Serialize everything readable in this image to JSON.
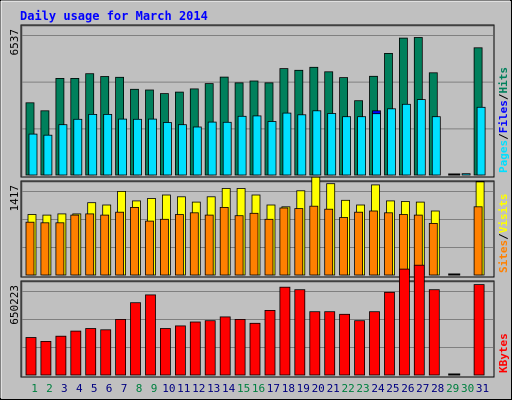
{
  "chart_data": {
    "type": "bar",
    "title": "Daily usage for March 2014",
    "x": [
      1,
      2,
      3,
      4,
      5,
      6,
      7,
      8,
      9,
      10,
      11,
      12,
      13,
      14,
      15,
      16,
      17,
      18,
      19,
      20,
      21,
      22,
      23,
      24,
      25,
      26,
      27,
      28,
      29,
      30,
      31
    ],
    "weekend_days": [
      1,
      2,
      8,
      9,
      15,
      16,
      22,
      23,
      29,
      30
    ],
    "panels": [
      {
        "ymax_label": "6537",
        "ymax": 6537,
        "series": [
          {
            "name": "Hits",
            "color": "#00805c",
            "values": [
              3370,
              3000,
              4510,
              4510,
              4730,
              4600,
              4560,
              4000,
              3970,
              3800,
              3870,
              4020,
              4270,
              4570,
              4300,
              4390,
              4300,
              4970,
              4890,
              5030,
              4820,
              4550,
              3470,
              4610,
              5680,
              6390,
              6420,
              4770,
              0,
              0,
              5940
            ]
          },
          {
            "name": "Files",
            "color": "#0000ff",
            "values": [
              0,
              0,
              0,
              0,
              0,
              0,
              0,
              0,
              0,
              0,
              0,
              0,
              0,
              0,
              0,
              0,
              0,
              0,
              0,
              0,
              0,
              0,
              0,
              3000,
              0,
              0,
              0,
              0,
              0,
              0,
              0
            ]
          },
          {
            "name": "Pages",
            "color": "#00e0ff",
            "values": [
              1910,
              1860,
              2350,
              2600,
              2830,
              2830,
              2610,
              2600,
              2610,
              2450,
              2350,
              2240,
              2470,
              2460,
              2740,
              2760,
              2500,
              2890,
              2810,
              3000,
              2870,
              2720,
              2720,
              2860,
              3090,
              3300,
              3520,
              2720,
              0,
              60,
              3160
            ]
          }
        ],
        "legend": [
          "Pages",
          "/",
          "Files",
          "/",
          "Hits"
        ]
      },
      {
        "ymax_label": "1417",
        "ymax": 1417,
        "series": [
          {
            "name": "Visits",
            "color": "#ffff00",
            "values": [
              1020,
              1010,
              1030,
              1030,
              1220,
              1180,
              1410,
              1250,
              1290,
              1350,
              1320,
              1230,
              1320,
              1460,
              1460,
              1350,
              1180,
              1150,
              1420,
              1650,
              1540,
              1260,
              1180,
              1520,
              1250,
              1240,
              1230,
              1080,
              0,
              0,
              1570
            ]
          },
          {
            "name": "Sites",
            "color": "#ff8000",
            "values": [
              890,
              880,
              880,
              1010,
              1030,
              1010,
              1060,
              1140,
              910,
              940,
              1020,
              1050,
              1010,
              1140,
              1000,
              1040,
              940,
              1130,
              1120,
              1160,
              1110,
              970,
              1060,
              1080,
              1050,
              1020,
              1010,
              870,
              0,
              0,
              1150
            ]
          }
        ],
        "legend": [
          "Sites",
          "/",
          "Visits"
        ]
      },
      {
        "ymax_label": "650223",
        "ymax": 650223,
        "series": [
          {
            "name": "KBytes",
            "color": "#ff0000",
            "values": [
              290000,
              260000,
              300000,
              340000,
              360000,
              350000,
              430000,
              560000,
              620000,
              360000,
              380000,
              410000,
              420000,
              450000,
              430000,
              400000,
              500000,
              680000,
              660000,
              490000,
              490000,
              470000,
              420000,
              490000,
              640000,
              820000,
              850000,
              660000,
              0,
              0,
              700000
            ]
          }
        ],
        "legend": [
          "KBytes"
        ]
      }
    ],
    "colors": {
      "background": "#c0c0c0",
      "title": "#0000ff",
      "weekday_label": "#000080",
      "weekend_label": "#008040",
      "grid": "#808080"
    }
  }
}
